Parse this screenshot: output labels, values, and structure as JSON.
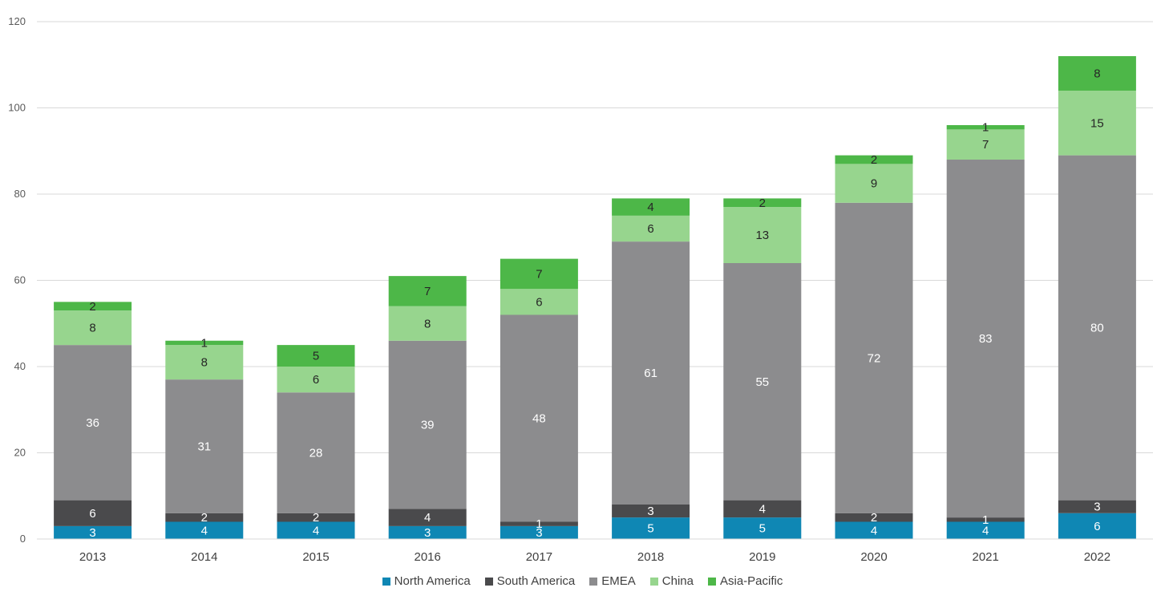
{
  "chart_data": {
    "type": "bar",
    "stacked": true,
    "categories": [
      "2013",
      "2014",
      "2015",
      "2016",
      "2017",
      "2018",
      "2019",
      "2020",
      "2021",
      "2022"
    ],
    "series": [
      {
        "name": "North America",
        "color": "#0F87B4",
        "values": [
          3,
          4,
          4,
          3,
          3,
          5,
          5,
          4,
          4,
          6
        ]
      },
      {
        "name": "South America",
        "color": "#4A4A4C",
        "values": [
          6,
          2,
          2,
          4,
          1,
          3,
          4,
          2,
          1,
          3
        ]
      },
      {
        "name": "EMEA",
        "color": "#8C8C8E",
        "values": [
          36,
          31,
          28,
          39,
          48,
          61,
          55,
          72,
          83,
          80
        ]
      },
      {
        "name": "China",
        "color": "#97D58E",
        "values": [
          8,
          8,
          6,
          8,
          6,
          6,
          13,
          9,
          7,
          15
        ]
      },
      {
        "name": "Asia-Pacific",
        "color": "#4DB748",
        "values": [
          2,
          1,
          5,
          7,
          7,
          4,
          2,
          2,
          1,
          8
        ]
      }
    ],
    "yticks": [
      "0",
      "20",
      "40",
      "60",
      "80",
      "100",
      "120"
    ],
    "ylim": [
      0,
      120
    ],
    "grid": true,
    "legend_position": "bottom-center"
  }
}
